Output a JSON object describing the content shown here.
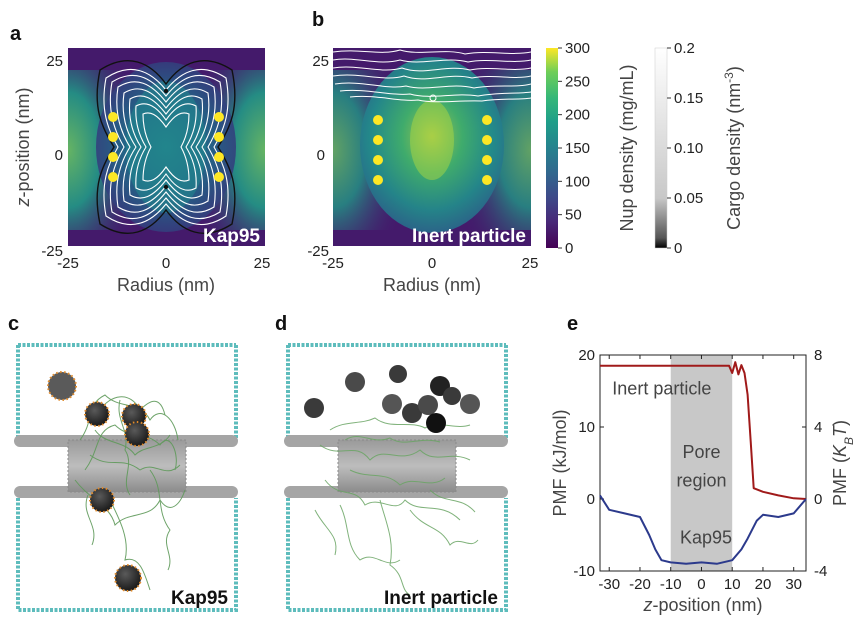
{
  "panels": {
    "a": {
      "letter": "a",
      "label": "Kap95"
    },
    "b": {
      "letter": "b",
      "label": "Inert particle"
    },
    "c": {
      "letter": "c",
      "label": "Kap95"
    },
    "d": {
      "letter": "d",
      "label": "Inert particle"
    },
    "e": {
      "letter": "e"
    }
  },
  "heatmap_axes": {
    "xlabel": "Radius (nm)",
    "ylabel_italic": "z",
    "ylabel_rest": "-position (nm)",
    "x_ticks": [
      "-25",
      "0",
      "25"
    ],
    "y_ticks": [
      "25",
      "0",
      "-25"
    ]
  },
  "colorbars": {
    "nup": {
      "label": "Nup density (mg/mL)",
      "ticks": [
        "300",
        "250",
        "200",
        "150",
        "100",
        "50",
        "0"
      ],
      "colormap": "viridis"
    },
    "cargo": {
      "label_main": "Cargo density (nm",
      "label_sup": "-3",
      "label_end": ")",
      "ticks": [
        "0.2",
        "0.15",
        "0.10",
        "0.05",
        "0"
      ],
      "colormap": "gray"
    }
  },
  "colors": {
    "inert": "#a01a1a",
    "kap95": "#2c3a8c",
    "pore_region": "#c8c8c8",
    "scaffold_wall": "#4fb3b3",
    "nup_strands": "#5f9a5a",
    "grafting_bead": "#f2e52a"
  },
  "chart_data": {
    "type": "line",
    "xlabel_italic": "z",
    "xlabel_rest": "-position (nm)",
    "ylabel": "PMF (kJ/mol)",
    "ylabel_right_main": "PMF (",
    "ylabel_right_italic": "K",
    "ylabel_right_sub": "B",
    "ylabel_right_italic2": "T",
    "ylabel_right_end": ")",
    "xlim": [
      -33,
      34
    ],
    "ylim": [
      -10,
      20
    ],
    "ylim_right": [
      -4,
      8
    ],
    "x_ticks": [
      -30,
      -20,
      -10,
      0,
      10,
      20,
      30
    ],
    "y_ticks": [
      -10,
      0,
      10,
      20
    ],
    "y_ticks_right": [
      -4,
      0,
      4,
      8
    ],
    "shaded_region": {
      "x": [
        -10,
        10
      ],
      "label_line1": "Pore",
      "label_line2": "region"
    },
    "series": [
      {
        "name": "Inert particle",
        "color": "#a01a1a",
        "x": [
          -33,
          -10,
          9,
          10,
          11,
          12,
          13,
          14,
          15,
          16,
          17,
          20,
          25,
          30,
          34
        ],
        "y": [
          18.5,
          18.5,
          18.5,
          17.5,
          19.0,
          17.3,
          18.6,
          17.5,
          14.5,
          8.0,
          1.5,
          1.0,
          0.5,
          0.1,
          0.0
        ]
      },
      {
        "name": "Kap95",
        "color": "#2c3a8c",
        "x": [
          -33,
          -30,
          -25,
          -20,
          -17,
          -15,
          -13,
          -10,
          -5,
          0,
          5,
          10,
          13,
          15,
          18,
          20,
          25,
          30,
          34
        ],
        "y": [
          0.5,
          -1.5,
          -2.0,
          -2.5,
          -5.0,
          -7.0,
          -8.5,
          -8.8,
          -9.0,
          -8.8,
          -9.0,
          -8.5,
          -7.0,
          -5.5,
          -3.0,
          -2.2,
          -2.5,
          -2.0,
          0.0
        ]
      }
    ]
  }
}
